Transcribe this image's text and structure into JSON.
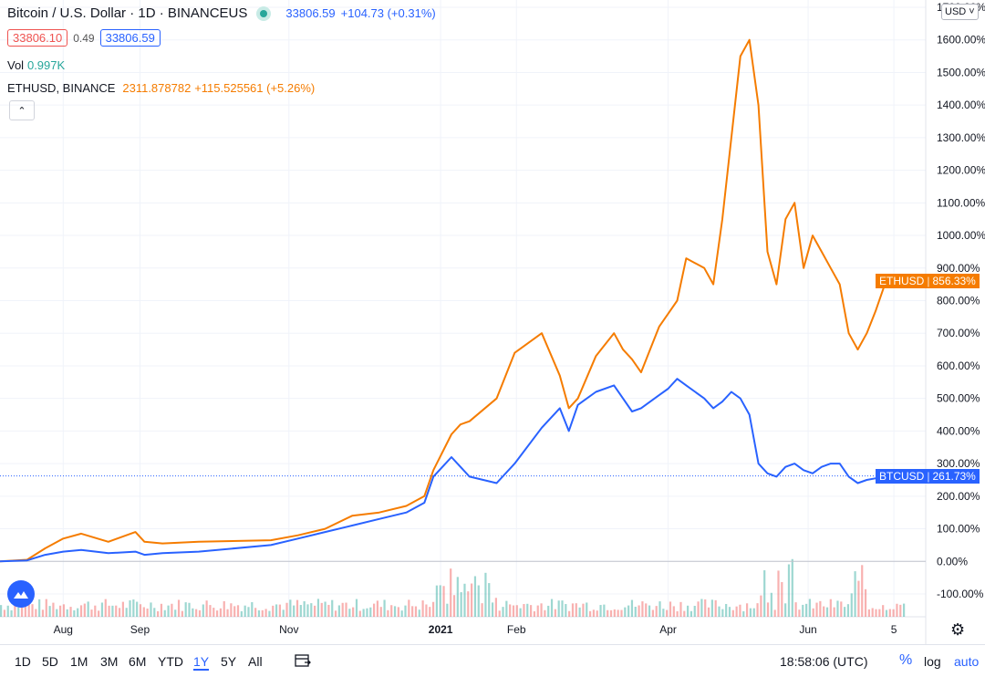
{
  "header": {
    "symbol_title": "Bitcoin / U.S. Dollar · 1D · BINANCEUS",
    "last_price": "33806.59",
    "change": "+104.73 (+0.31%)",
    "bid": "33806.10",
    "spread": "0.49",
    "ask": "33806.59",
    "vol_label": "Vol",
    "vol_value": "0.997K",
    "compare_symbol": "ETHUSD, BINANCE",
    "compare_price": "2311.878782",
    "compare_change": "+115.525561 (+5.26%)",
    "currency": "USD"
  },
  "bottombar": {
    "timeframes": [
      "1D",
      "5D",
      "1M",
      "3M",
      "6M",
      "YTD",
      "1Y",
      "5Y",
      "All"
    ],
    "active_timeframe": "1Y",
    "clock": "18:58:06 (UTC)",
    "percent_label": "%",
    "log_label": "log",
    "auto_label": "auto"
  },
  "colors": {
    "btc": "#2962ff",
    "eth": "#f57c00",
    "vol_up": "#26a69a",
    "vol_down": "#ef5350"
  },
  "chart_data": {
    "type": "line",
    "x_ticks": [
      "Aug",
      "Sep",
      "Nov",
      "2021",
      "Feb",
      "Apr",
      "Jun",
      "5"
    ],
    "y_ticks": [
      "1700.00%",
      "1600.00%",
      "1500.00%",
      "1400.00%",
      "1300.00%",
      "1200.00%",
      "1100.00%",
      "1000.00%",
      "900.00%",
      "800.00%",
      "700.00%",
      "600.00%",
      "500.00%",
      "400.00%",
      "300.00%",
      "200.00%",
      "100.00%",
      "0.00%",
      "-100.00%"
    ],
    "ylim": [
      -100,
      1700
    ],
    "series": [
      {
        "name": "ETHUSD",
        "last_label": "856.33%",
        "x": [
          0,
          0.03,
          0.05,
          0.07,
          0.09,
          0.12,
          0.15,
          0.16,
          0.18,
          0.22,
          0.3,
          0.33,
          0.36,
          0.39,
          0.42,
          0.45,
          0.47,
          0.48,
          0.5,
          0.51,
          0.52,
          0.55,
          0.57,
          0.6,
          0.62,
          0.63,
          0.64,
          0.66,
          0.68,
          0.69,
          0.7,
          0.71,
          0.73,
          0.74,
          0.75,
          0.76,
          0.78,
          0.79,
          0.8,
          0.81,
          0.82,
          0.83,
          0.84,
          0.85,
          0.86,
          0.87,
          0.88,
          0.89,
          0.9,
          0.91,
          0.92,
          0.93,
          0.94,
          0.95,
          0.96,
          0.97,
          0.98,
          0.99,
          1.0
        ],
        "y": [
          0,
          5,
          40,
          70,
          85,
          60,
          90,
          60,
          55,
          60,
          65,
          80,
          100,
          140,
          150,
          170,
          200,
          280,
          390,
          420,
          430,
          500,
          640,
          700,
          570,
          470,
          500,
          630,
          700,
          650,
          620,
          580,
          720,
          760,
          800,
          930,
          900,
          850,
          1050,
          1300,
          1550,
          1600,
          1400,
          950,
          850,
          1050,
          1100,
          900,
          1000,
          950,
          900,
          850,
          700,
          650,
          700,
          770,
          850,
          870,
          860
        ]
      },
      {
        "name": "BTCUSD",
        "last_label": "261.73%",
        "x": [
          0,
          0.03,
          0.05,
          0.07,
          0.09,
          0.12,
          0.15,
          0.16,
          0.18,
          0.22,
          0.3,
          0.33,
          0.36,
          0.39,
          0.42,
          0.45,
          0.47,
          0.48,
          0.5,
          0.51,
          0.52,
          0.55,
          0.57,
          0.6,
          0.62,
          0.63,
          0.64,
          0.66,
          0.68,
          0.69,
          0.7,
          0.71,
          0.73,
          0.74,
          0.75,
          0.76,
          0.78,
          0.79,
          0.8,
          0.81,
          0.82,
          0.83,
          0.84,
          0.85,
          0.86,
          0.87,
          0.88,
          0.89,
          0.9,
          0.91,
          0.92,
          0.93,
          0.94,
          0.95,
          0.96,
          0.97,
          0.98,
          0.99,
          1.0
        ],
        "y": [
          0,
          3,
          20,
          30,
          35,
          25,
          30,
          20,
          25,
          30,
          50,
          70,
          90,
          110,
          130,
          150,
          180,
          260,
          320,
          290,
          260,
          240,
          300,
          410,
          470,
          400,
          480,
          520,
          540,
          500,
          460,
          470,
          510,
          530,
          560,
          540,
          500,
          470,
          490,
          520,
          500,
          450,
          300,
          270,
          260,
          290,
          300,
          280,
          270,
          290,
          300,
          300,
          260,
          240,
          250,
          255,
          260,
          262,
          262
        ]
      }
    ]
  }
}
